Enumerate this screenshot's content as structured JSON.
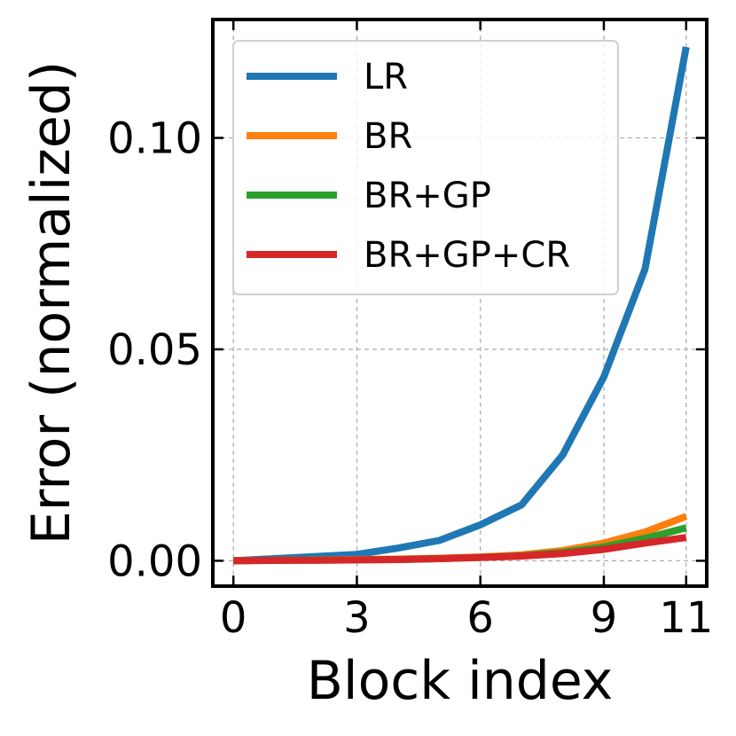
{
  "chart_data": {
    "type": "line",
    "xlabel": "Block index",
    "ylabel": "Error (normalized)",
    "xlim": [
      -0.5,
      11.5
    ],
    "ylim": [
      -0.006,
      0.128
    ],
    "xticks": [
      0,
      3,
      6,
      9,
      11
    ],
    "xtick_labels": [
      "0",
      "3",
      "6",
      "9",
      "11"
    ],
    "yticks": [
      0.0,
      0.05,
      0.1
    ],
    "ytick_labels": [
      "0.00",
      "0.05",
      "0.10"
    ],
    "grid": true,
    "legend_position": "upper-left",
    "x": [
      0,
      1,
      2,
      3,
      4,
      5,
      6,
      7,
      8,
      9,
      10,
      11
    ],
    "series": [
      {
        "name": "LR",
        "color": "#1f77b4",
        "values": [
          0.0,
          0.0005,
          0.001,
          0.0015,
          0.003,
          0.0048,
          0.0085,
          0.0132,
          0.025,
          0.0435,
          0.069,
          0.1215
        ]
      },
      {
        "name": "BR",
        "color": "#ff7f0e",
        "values": [
          0.0,
          0.0001,
          0.0002,
          0.0003,
          0.0004,
          0.0006,
          0.0009,
          0.0014,
          0.0024,
          0.0042,
          0.0068,
          0.0105
        ]
      },
      {
        "name": "BR+GP",
        "color": "#2ca02c",
        "values": [
          0.0,
          0.0001,
          0.0002,
          0.0002,
          0.0003,
          0.0005,
          0.0008,
          0.0012,
          0.002,
          0.0033,
          0.0053,
          0.0078
        ]
      },
      {
        "name": "BR+GP+CR",
        "color": "#d62728",
        "values": [
          0.0,
          0.0001,
          0.0001,
          0.0002,
          0.0003,
          0.0005,
          0.0008,
          0.0011,
          0.0017,
          0.0027,
          0.0042,
          0.0055
        ]
      }
    ]
  }
}
